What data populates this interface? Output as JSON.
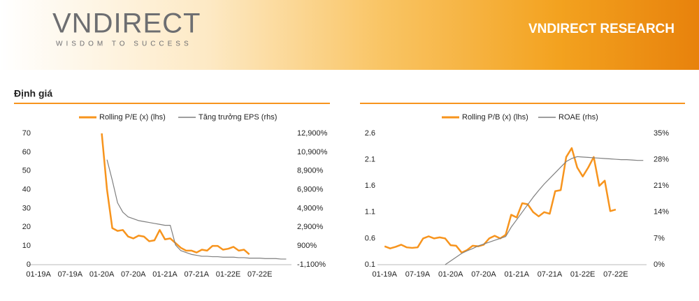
{
  "header": {
    "logo": "VNDIRECT",
    "tagline": "WISDOM TO SUCCESS",
    "title": "VNDIRECT RESEARCH"
  },
  "section": "Định giá",
  "chart_data": [
    {
      "type": "line",
      "x": [
        0,
        1,
        2,
        3,
        4,
        5,
        6,
        7,
        8,
        9,
        10,
        11,
        12,
        13,
        14,
        15,
        16,
        17,
        18,
        19,
        20,
        21,
        22,
        23,
        24,
        25,
        26,
        27,
        28,
        29,
        30,
        31,
        32,
        33,
        34,
        35,
        36,
        37,
        38,
        39,
        40,
        41,
        42,
        43,
        44,
        45,
        46,
        47
      ],
      "xlim": [
        -2,
        48
      ],
      "xticks": [
        {
          "value": 0,
          "label": "01-19A"
        },
        {
          "value": 6,
          "label": "07-19A"
        },
        {
          "value": 12,
          "label": "01-20A"
        },
        {
          "value": 18,
          "label": "07-20A"
        },
        {
          "value": 24,
          "label": "01-21A"
        },
        {
          "value": 30,
          "label": "07-21A"
        },
        {
          "value": 36,
          "label": "01-22E"
        },
        {
          "value": 42,
          "label": "07-22E"
        }
      ],
      "ylim": [
        0,
        70
      ],
      "yticks": [
        0,
        10,
        20,
        30,
        40,
        50,
        60,
        70
      ],
      "y2lim": [
        -1100,
        12900
      ],
      "y2ticks": [
        {
          "value": -1100,
          "label": "-1,100%"
        },
        {
          "value": 900,
          "label": "900%"
        },
        {
          "value": 2900,
          "label": "2,900%"
        },
        {
          "value": 4900,
          "label": "4,900%"
        },
        {
          "value": 6900,
          "label": "6,900%"
        },
        {
          "value": 8900,
          "label": "8,900%"
        },
        {
          "value": 10900,
          "label": "10,900%"
        },
        {
          "value": 12900,
          "label": "12,900%"
        }
      ],
      "series": [
        {
          "name": "Rolling P/E (x) (lhs)",
          "color": "#f7941d",
          "axis": "y",
          "values": [
            null,
            null,
            null,
            null,
            null,
            null,
            null,
            null,
            null,
            null,
            null,
            null,
            70,
            40,
            19.5,
            18,
            18.5,
            15,
            14,
            15.5,
            15,
            12.5,
            13,
            18.5,
            13.5,
            14,
            11.5,
            9,
            7.5,
            7.5,
            6.5,
            8,
            7.5,
            10,
            10,
            8,
            8.5,
            9.5,
            7.5,
            8,
            5.5,
            null,
            null,
            null,
            null,
            null,
            null,
            null
          ]
        },
        {
          "name": "Tăng trưởng EPS (rhs)",
          "color": "#7f7f7f",
          "axis": "y2",
          "values": [
            null,
            null,
            null,
            null,
            null,
            null,
            null,
            null,
            null,
            null,
            null,
            null,
            null,
            10100,
            7900,
            5500,
            4500,
            4000,
            3800,
            3600,
            3500,
            3400,
            3300,
            3200,
            3100,
            3100,
            1000,
            400,
            200,
            0,
            -100,
            -200,
            -200,
            -250,
            -250,
            -300,
            -300,
            -300,
            -350,
            -350,
            -400,
            -400,
            -400,
            -450,
            -450,
            -450,
            -500,
            -500
          ]
        }
      ]
    },
    {
      "type": "line",
      "x": [
        0,
        1,
        2,
        3,
        4,
        5,
        6,
        7,
        8,
        9,
        10,
        11,
        12,
        13,
        14,
        15,
        16,
        17,
        18,
        19,
        20,
        21,
        22,
        23,
        24,
        25,
        26,
        27,
        28,
        29,
        30,
        31,
        32,
        33,
        34,
        35,
        36,
        37,
        38,
        39,
        40,
        41,
        42,
        43,
        44,
        45,
        46,
        47
      ],
      "xlim": [
        -1.3,
        47.6
      ],
      "xticks": [
        {
          "value": 0,
          "label": "01-19A"
        },
        {
          "value": 6,
          "label": "07-19A"
        },
        {
          "value": 12,
          "label": "01-20A"
        },
        {
          "value": 18,
          "label": "07-20A"
        },
        {
          "value": 24,
          "label": "01-21A"
        },
        {
          "value": 30,
          "label": "07-21A"
        },
        {
          "value": 36,
          "label": "01-22E"
        },
        {
          "value": 42,
          "label": "07-22E"
        }
      ],
      "ylim": [
        0.1,
        2.6
      ],
      "yticks": [
        0.1,
        0.6,
        1.1,
        1.6,
        2.1,
        2.6
      ],
      "y2lim": [
        0,
        35
      ],
      "y2ticks": [
        {
          "value": 0,
          "label": "0%"
        },
        {
          "value": 7,
          "label": "7%"
        },
        {
          "value": 14,
          "label": "14%"
        },
        {
          "value": 21,
          "label": "21%"
        },
        {
          "value": 28,
          "label": "28%"
        },
        {
          "value": 35,
          "label": "35%"
        }
      ],
      "series": [
        {
          "name": "Rolling P/B (x) (lhs)",
          "color": "#f7941d",
          "axis": "y",
          "values": [
            0.45,
            0.41,
            0.44,
            0.48,
            0.43,
            0.42,
            0.43,
            0.6,
            0.64,
            0.6,
            0.62,
            0.6,
            0.47,
            0.46,
            0.33,
            0.38,
            0.46,
            0.45,
            0.48,
            0.6,
            0.65,
            0.6,
            0.67,
            1.05,
            1.0,
            1.27,
            1.25,
            1.1,
            1.02,
            1.1,
            1.07,
            1.5,
            1.52,
            2.15,
            2.32,
            1.95,
            1.78,
            1.95,
            2.15,
            1.6,
            1.7,
            1.12,
            1.15,
            null,
            null,
            null,
            null,
            null
          ]
        },
        {
          "name": "ROAE (rhs)",
          "color": "#7f7f7f",
          "axis": "y2",
          "values": [
            null,
            null,
            null,
            null,
            null,
            null,
            null,
            null,
            null,
            null,
            null,
            0,
            1,
            2,
            3,
            3.7,
            4.3,
            5,
            5.5,
            6,
            6.5,
            7,
            7.5,
            10,
            12,
            14,
            16,
            18,
            19.8,
            21.5,
            23,
            24.5,
            26,
            27.5,
            28.3,
            28.8,
            28.7,
            28.6,
            28.5,
            28.4,
            28.3,
            28.2,
            28.1,
            28,
            28,
            27.9,
            27.8,
            27.8
          ]
        }
      ]
    }
  ]
}
